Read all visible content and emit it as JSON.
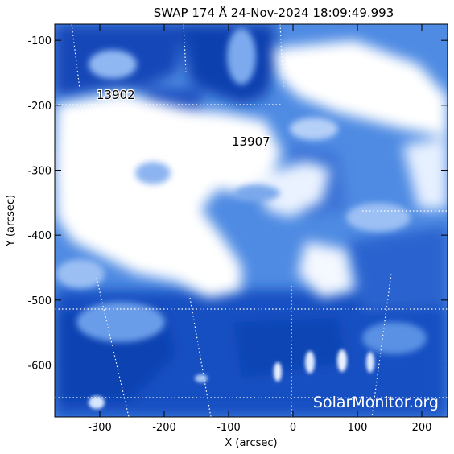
{
  "title": "SWAP 174 Å 24-Nov-2024 18:09:49.993",
  "axes": {
    "xlabel": "X (arcsec)",
    "ylabel": "Y (arcsec)",
    "xlim": [
      -370,
      240
    ],
    "ylim": [
      -680,
      -75
    ],
    "xticks": [
      -300,
      -200,
      -100,
      0,
      100,
      200
    ],
    "yticks": [
      -100,
      -200,
      -300,
      -400,
      -500,
      -600
    ]
  },
  "active_regions": [
    {
      "label": "13902",
      "x": -305,
      "y": -190
    },
    {
      "label": "13907",
      "x": -95,
      "y": -262
    }
  ],
  "watermark": "SolarMonitor.org",
  "colors": {
    "image_bright": "#ffffff",
    "image_mid": "#5a95e6",
    "image_dark": "#0a3fb0",
    "frame": "#000000"
  }
}
